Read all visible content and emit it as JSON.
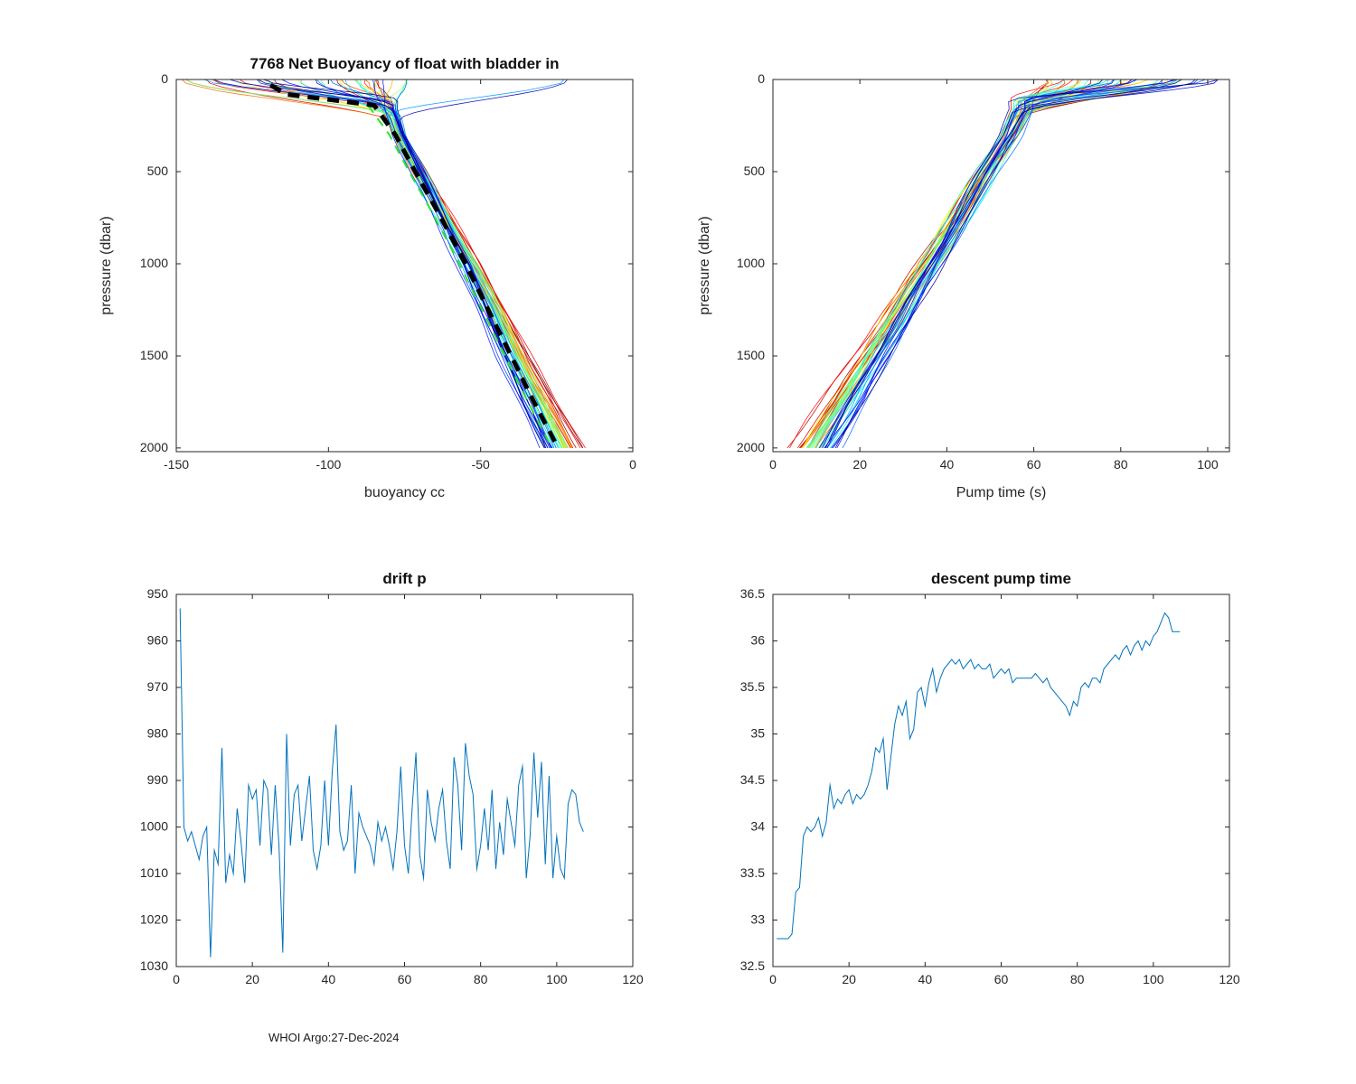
{
  "figure": {
    "footer": "WHOI Argo:27-Dec-2024",
    "background": "#ffffff",
    "axis_color": "#262626",
    "tick_font_px": 14
  },
  "chart_data": [
    {
      "id": "net_buoyancy",
      "type": "profile_ensemble",
      "title": "7768 Net Buoyancy of float with bladder in",
      "xlabel": "buoyancy cc",
      "ylabel": "pressure (dbar)",
      "xlim": [
        -150,
        0
      ],
      "ylim": [
        0,
        2020
      ],
      "y_dir": "down",
      "xticks": [
        -150,
        -100,
        -50,
        0
      ],
      "yticks": [
        0,
        500,
        1000,
        1500,
        2000
      ],
      "colormap": "jet",
      "n_lines": 48,
      "seed": 7768,
      "trunk": {
        "p": [
          160,
          300,
          500,
          750,
          1000,
          1250,
          1500,
          1750,
          2000
        ],
        "x": [
          -80,
          -77,
          -70.5,
          -62,
          -53.5,
          -46,
          -39,
          -31.5,
          -23.5
        ]
      },
      "bend_p": [
        110,
        240
      ],
      "surface_x": [
        -148,
        -62
      ],
      "stray_surface": [
        -30,
        -12
      ],
      "surface_color_bias": -0.25,
      "deep_spread": 13,
      "trunk_jitter": 2.5,
      "mean_lines": [
        {
          "name": "mean-green-dashed",
          "p": [
            140,
            300,
            500,
            750,
            1000,
            1250,
            1500,
            1750,
            2000
          ],
          "x": [
            -87,
            -80,
            -73.5,
            -65,
            -57,
            -49.5,
            -42,
            -34.5,
            -26.5
          ],
          "color": "#2ee52e",
          "dash": [
            10,
            8
          ],
          "width": 2
        },
        {
          "name": "mean-black-dashed",
          "p": [
            30,
            80,
            140,
            300,
            500,
            750,
            1000,
            1250,
            1500,
            1750,
            2000
          ],
          "x": [
            -119,
            -114,
            -85,
            -78,
            -71.5,
            -63,
            -55,
            -47.5,
            -40,
            -32.5,
            -24.5
          ],
          "color": "#000000",
          "dash": [
            13,
            9
          ],
          "width": 5
        }
      ]
    },
    {
      "id": "pump_time",
      "type": "profile_ensemble",
      "title": "",
      "xlabel": "Pump time (s)",
      "ylabel": "pressure (dbar)",
      "xlim": [
        0,
        105
      ],
      "ylim": [
        0,
        2020
      ],
      "y_dir": "down",
      "xticks": [
        0,
        20,
        40,
        60,
        80,
        100
      ],
      "yticks": [
        0,
        500,
        1000,
        1500,
        2000
      ],
      "colormap": "jet",
      "n_lines": 48,
      "seed": 2024,
      "trunk": {
        "p": [
          160,
          300,
          500,
          750,
          1000,
          1250,
          1500,
          1750,
          2000
        ],
        "x": [
          57.5,
          54.5,
          49,
          42.5,
          36,
          29.5,
          23,
          16.5,
          9.5
        ]
      },
      "bend_p": [
        100,
        220
      ],
      "surface_x": [
        63,
        104
      ],
      "surface_color_bias": -0.3,
      "deep_spread": -8,
      "trunk_jitter": 2.5,
      "mean_lines": []
    },
    {
      "id": "drift_p",
      "type": "line",
      "title": "drift p",
      "xlabel": "",
      "ylabel": "",
      "xlim": [
        0,
        120
      ],
      "ylim": [
        950,
        1030
      ],
      "y_dir": "down",
      "xticks": [
        0,
        20,
        40,
        60,
        80,
        100,
        120
      ],
      "yticks": [
        950,
        960,
        970,
        980,
        990,
        1000,
        1010,
        1020,
        1030
      ],
      "line_color": "#0072BD",
      "x_start": 1,
      "values": [
        953,
        1000,
        1003,
        1001,
        1004,
        1007,
        1002,
        1000,
        1028,
        1005,
        1008,
        983,
        1012,
        1006,
        1010,
        996,
        1003,
        1012,
        991,
        994,
        992,
        1004,
        990,
        992,
        1006,
        991,
        1004,
        1027,
        980,
        1004,
        993,
        991,
        1003,
        996,
        989,
        1005,
        1009,
        1004,
        990,
        1004,
        988,
        978,
        1001,
        1005,
        1003,
        991,
        1010,
        997,
        1000,
        1002,
        1004,
        1008,
        999,
        1003,
        1000,
        1004,
        1009,
        1001,
        987,
        1004,
        1010,
        996,
        984,
        1006,
        1011,
        992,
        999,
        1003,
        996,
        992,
        1003,
        1009,
        985,
        991,
        1005,
        982,
        989,
        993,
        1009,
        1004,
        996,
        1005,
        992,
        1009,
        999,
        1006,
        994,
        999,
        1004,
        991,
        987,
        1011,
        1002,
        984,
        998,
        986,
        1008,
        989,
        1011,
        1002,
        1009,
        1011,
        995,
        992,
        993,
        999,
        1001
      ]
    },
    {
      "id": "descent_pump_time",
      "type": "line",
      "title": "descent pump time",
      "xlabel": "",
      "ylabel": "",
      "xlim": [
        0,
        120
      ],
      "ylim": [
        32.5,
        36.5
      ],
      "y_dir": "up",
      "xticks": [
        0,
        20,
        40,
        60,
        80,
        100,
        120
      ],
      "yticks": [
        32.5,
        33,
        33.5,
        34,
        34.5,
        35,
        35.5,
        36,
        36.5
      ],
      "line_color": "#0072BD",
      "x_start": 1,
      "values": [
        32.8,
        32.8,
        32.8,
        32.8,
        32.85,
        33.3,
        33.35,
        33.9,
        34.0,
        33.95,
        34.0,
        34.1,
        33.9,
        34.05,
        34.45,
        34.2,
        34.3,
        34.25,
        34.35,
        34.4,
        34.25,
        34.35,
        34.3,
        34.35,
        34.45,
        34.6,
        34.85,
        34.8,
        34.95,
        34.4,
        34.75,
        35.1,
        35.3,
        35.2,
        35.35,
        34.95,
        35.05,
        35.45,
        35.5,
        35.3,
        35.55,
        35.7,
        35.45,
        35.6,
        35.7,
        35.75,
        35.8,
        35.75,
        35.8,
        35.7,
        35.75,
        35.8,
        35.7,
        35.75,
        35.7,
        35.7,
        35.75,
        35.6,
        35.65,
        35.7,
        35.65,
        35.7,
        35.55,
        35.6,
        35.6,
        35.6,
        35.6,
        35.6,
        35.65,
        35.6,
        35.55,
        35.6,
        35.5,
        35.45,
        35.4,
        35.35,
        35.3,
        35.2,
        35.35,
        35.3,
        35.5,
        35.55,
        35.5,
        35.6,
        35.6,
        35.55,
        35.7,
        35.75,
        35.8,
        35.85,
        35.8,
        35.9,
        35.95,
        35.85,
        35.95,
        36.0,
        35.9,
        36.0,
        35.95,
        36.05,
        36.1,
        36.2,
        36.3,
        36.25,
        36.1,
        36.1,
        36.1
      ]
    }
  ]
}
